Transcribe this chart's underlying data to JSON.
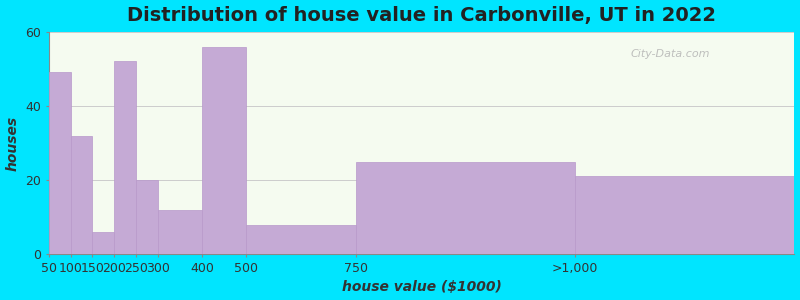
{
  "title": "Distribution of house value in Carbonville, UT in 2022",
  "xlabel": "house value ($1000)",
  "ylabel": "houses",
  "tick_labels": [
    "50",
    "100",
    "150",
    "200",
    "250",
    "300",
    "400",
    "500",
    "750",
    ">1,000"
  ],
  "tick_positions": [
    0,
    1,
    2,
    3,
    4,
    5,
    7,
    9,
    14,
    24
  ],
  "bar_heights": [
    49,
    32,
    6,
    52,
    20,
    12,
    56,
    8,
    25,
    21
  ],
  "bar_lefts": [
    0,
    1,
    2,
    3,
    4,
    5,
    7,
    9,
    14,
    24
  ],
  "bar_widths": [
    1,
    1,
    1,
    1,
    1,
    2,
    2,
    5,
    10,
    10
  ],
  "bar_color": "#c5aad5",
  "bar_edgecolor": "#b898ca",
  "ylim": [
    0,
    60
  ],
  "yticks": [
    0,
    20,
    40,
    60
  ],
  "background_outer": "#00e5ff",
  "plot_bg_top": "#f5fbf0",
  "plot_bg_bottom": "#f5fbf0",
  "title_fontsize": 14,
  "axis_label_fontsize": 10,
  "tick_fontsize": 9,
  "watermark_text": "City-Data.com"
}
